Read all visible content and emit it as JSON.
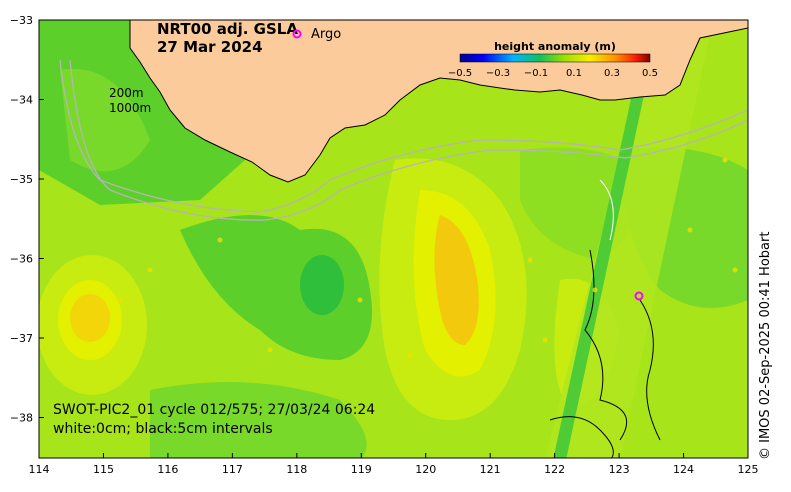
{
  "title": {
    "product": "NRT00 adj. GSLA",
    "date": "27 Mar 2024"
  },
  "legend": {
    "argo_symbol": "o",
    "argo_label": "Argo",
    "colorbar_title": "height anomaly (m)",
    "colorbar_ticks": [
      "−0.5",
      "−0.3",
      "−0.1",
      "0.1",
      "0.3",
      "0.5"
    ]
  },
  "isobaths": {
    "label_200": "200m",
    "label_1000": "1000m"
  },
  "swot": {
    "caption_line1": "SWOT-PIC2_01 cycle 012/575; 27/03/24 06:24",
    "caption_line2": "white:0cm; black:5cm intervals"
  },
  "credit": "© IMOS 02-Sep-2025 00:41 Hobart",
  "axes": {
    "x_ticks": [
      "114",
      "115",
      "116",
      "117",
      "118",
      "119",
      "120",
      "121",
      "122",
      "123",
      "124",
      "125"
    ],
    "y_ticks": [
      "−33",
      "−34",
      "−35",
      "−36",
      "−37",
      "−38"
    ]
  },
  "colors": {
    "land": "#fbcb9b",
    "argo": "#ff00ff",
    "ocean_base": "#a8e41a"
  }
}
